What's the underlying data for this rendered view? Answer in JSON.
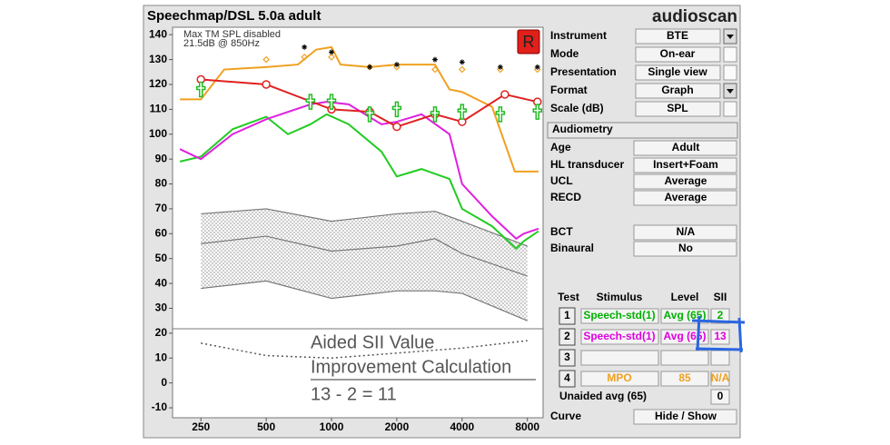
{
  "window_title": "Speechmap/DSL 5.0a adult",
  "logo": "audioscan",
  "chart_data": {
    "type": "line",
    "xscale": "log",
    "xlim": [
      185,
      9450
    ],
    "ylim": [
      -14,
      143
    ],
    "xticks": [
      250,
      500,
      1000,
      2000,
      4000,
      8000
    ],
    "yticks": [
      140,
      130,
      120,
      110,
      100,
      90,
      80,
      70,
      60,
      50,
      40,
      30,
      20,
      10,
      0,
      -10
    ],
    "notes": [
      "Max TM SPL disabled",
      "21.5dB @ 850Hz"
    ],
    "ear": "R",
    "band": {
      "x": [
        250,
        500,
        1000,
        2000,
        3000,
        4000,
        8000
      ],
      "upper": [
        68,
        70,
        65,
        68,
        69,
        65,
        55
      ],
      "middle": [
        56,
        59,
        53,
        55,
        58,
        52,
        43
      ],
      "lower": [
        38,
        41,
        34,
        37,
        37,
        36,
        25
      ]
    },
    "series": [
      {
        "color": "#f0a020",
        "x": [
          200,
          250,
          320,
          500,
          700,
          850,
          1000,
          1100,
          1500,
          2000,
          3000,
          3500,
          4000,
          5500,
          7000,
          9000
        ],
        "values": [
          114,
          114,
          126,
          127,
          128,
          134,
          135,
          128,
          127,
          128,
          128,
          118,
          117,
          111,
          85,
          85
        ]
      },
      {
        "color": "#22cc22",
        "x": [
          200,
          250,
          350,
          500,
          630,
          800,
          950,
          1200,
          1700,
          2000,
          2600,
          3500,
          4000,
          5500,
          7100,
          7700,
          9000
        ],
        "values": [
          89,
          91,
          102,
          107,
          100,
          104,
          108,
          104,
          93,
          83,
          86,
          82,
          70,
          63,
          54,
          57,
          61
        ]
      },
      {
        "color": "#e020e0",
        "x": [
          200,
          250,
          350,
          500,
          800,
          950,
          1200,
          1700,
          2000,
          2600,
          3500,
          4000,
          5500,
          7100,
          7700,
          9000
        ],
        "values": [
          94,
          90,
          100,
          106,
          112,
          113,
          112,
          104,
          105,
          108,
          100,
          80,
          67,
          58,
          60,
          62
        ]
      },
      {
        "color": "#e02020",
        "marker": "circle",
        "x": [
          250,
          500,
          1000,
          1500,
          2000,
          3000,
          4000,
          6300,
          8900
        ],
        "values": [
          122,
          120,
          110,
          109,
          103,
          108,
          105,
          116,
          113
        ]
      },
      {
        "color": "#22bb22",
        "marker": "cross",
        "line": false,
        "x": [
          250,
          800,
          1000,
          1500,
          2000,
          3000,
          4000,
          6000,
          8900
        ],
        "values": [
          118,
          113,
          113,
          108,
          110,
          108,
          109,
          108,
          109
        ]
      },
      {
        "color": "#f0a020",
        "marker": "diamond",
        "line": false,
        "x": [
          500,
          750,
          1000,
          1500,
          2000,
          3000,
          4000,
          6000,
          8900
        ],
        "values": [
          130,
          131,
          131,
          127,
          127,
          126,
          126,
          126,
          126
        ]
      },
      {
        "color": "#000000",
        "marker": "asterisk",
        "line": false,
        "x": [
          750,
          1000,
          1500,
          2000,
          3000,
          4000,
          6000,
          8900
        ],
        "values": [
          135,
          133,
          127,
          128,
          130,
          129,
          127,
          127
        ]
      },
      {
        "color": "#555555",
        "dashed": true,
        "x": [
          250,
          500,
          1000,
          2000,
          4000,
          8000
        ],
        "values": [
          16,
          11,
          10,
          12,
          14,
          17
        ]
      }
    ]
  },
  "settings": [
    {
      "label": "Instrument",
      "value": "BTE",
      "control": "dropdown"
    },
    {
      "label": "Mode",
      "value": "On-ear",
      "control": "checkbox"
    },
    {
      "label": "Presentation",
      "value": "Single view",
      "control": "checkbox"
    },
    {
      "label": "Format",
      "value": "Graph",
      "control": "dropdown"
    },
    {
      "label": "Scale (dB)",
      "value": "SPL",
      "control": "checkbox"
    }
  ],
  "audiometry_button": "Audiometry",
  "audiometry": [
    {
      "label": "Age",
      "value": "Adult"
    },
    {
      "label": "HL transducer",
      "value": "Insert+Foam"
    },
    {
      "label": "UCL",
      "value": "Average"
    },
    {
      "label": "RECD",
      "value": "Average"
    },
    {
      "label": "BCT",
      "value": "N/A"
    },
    {
      "label": "Binaural",
      "value": "No"
    }
  ],
  "tests": {
    "headers": [
      "Test",
      "Stimulus",
      "Level",
      "SII"
    ],
    "rows": [
      {
        "test": "1",
        "stimulus": "Speech-std(1)",
        "level": "Avg (65)",
        "sii": "2",
        "color": "#00b000"
      },
      {
        "test": "2",
        "stimulus": "Speech-std(1)",
        "level": "Avg (65)",
        "sii": "13",
        "color": "#e000e0"
      },
      {
        "test": "3"
      },
      {
        "test": "4",
        "stimulus": "MPO",
        "level": "85",
        "sii": "N/A",
        "color": "#f0a020"
      }
    ]
  },
  "unaided": {
    "label": "Unaided avg (65)",
    "value": "0"
  },
  "curve": {
    "label": "Curve",
    "value": "Hide / Show"
  },
  "annotation": [
    "Aided SII Value",
    "Improvement Calculation",
    "13 - 2 = 11"
  ]
}
